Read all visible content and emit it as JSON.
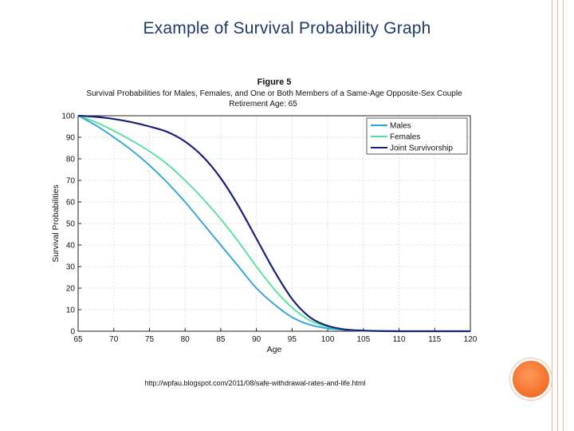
{
  "slide": {
    "title": "Example of Survival Probability Graph",
    "source": "http://wpfau.blogspot.com/2011/08/safe-withdrawal-rates-and-life.html"
  },
  "colors": {
    "title": "#1f3a66",
    "accent": "#f4742e",
    "border": "#f2b9a0"
  },
  "chart_data": {
    "type": "line",
    "title": "Figure 5",
    "subtitle": "Survival Probabilities for Males, Females, and One or Both Members of a Same-Age Opposite-Sex Couple",
    "subtitle2": "Retirement Age: 65",
    "xlabel": "Age",
    "ylabel": "Survival Probabilities",
    "xlim": [
      65,
      120
    ],
    "ylim": [
      0,
      100
    ],
    "xticks": [
      65,
      70,
      75,
      80,
      85,
      90,
      95,
      100,
      105,
      110,
      115,
      120
    ],
    "yticks": [
      0,
      10,
      20,
      30,
      40,
      50,
      60,
      70,
      80,
      90,
      100
    ],
    "grid": true,
    "legend": "top-right",
    "x": [
      65,
      67.5,
      70,
      72.5,
      75,
      77.5,
      80,
      82.5,
      85,
      87.5,
      90,
      92.5,
      95,
      97.5,
      100,
      102.5,
      105,
      107.5,
      110,
      112.5,
      115,
      117.5,
      120
    ],
    "series": [
      {
        "name": "Males",
        "color": "#2aa3d6",
        "values": [
          100,
          95.5,
          90,
          84,
          77,
          69,
          60,
          50,
          40,
          30,
          20,
          12.5,
          6.5,
          3,
          1.3,
          0.5,
          0.2,
          0,
          0,
          0,
          0,
          0,
          0
        ]
      },
      {
        "name": "Females",
        "color": "#4fe09a",
        "values": [
          100,
          97,
          93,
          88.5,
          83.5,
          77.5,
          70,
          61.5,
          52,
          41.5,
          30,
          19.5,
          11,
          5,
          2,
          0.7,
          0.2,
          0,
          0,
          0,
          0,
          0,
          0
        ]
      },
      {
        "name": "Joint Survivorship",
        "color": "#1b1f78",
        "values": [
          100,
          99.5,
          98.5,
          97,
          95,
          92.5,
          88,
          81,
          71,
          58,
          43,
          28,
          15,
          6.5,
          2.5,
          0.8,
          0.3,
          0.1,
          0,
          0,
          0,
          0,
          0
        ]
      }
    ]
  }
}
